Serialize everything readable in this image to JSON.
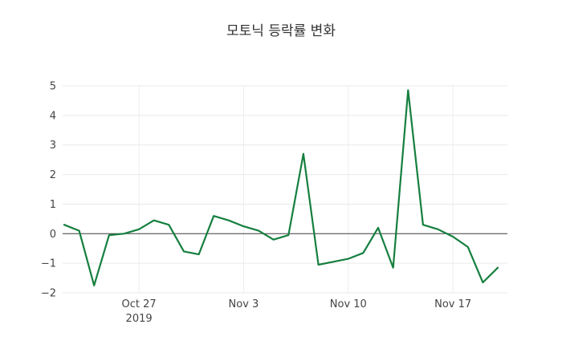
{
  "chart_data": {
    "type": "line",
    "title": "모토닉 등락률 변화",
    "xlabel": "",
    "ylabel": "",
    "ylim": [
      -2,
      5
    ],
    "yticks": [
      -2,
      -1,
      0,
      1,
      2,
      3,
      4,
      5
    ],
    "grid": true,
    "zeroline": true,
    "legend": "none",
    "line_color": "#157f3f",
    "background": "#ffffff",
    "xticks": [
      {
        "index": 5,
        "label": "Oct 27",
        "sublabel": "2019"
      },
      {
        "index": 12,
        "label": "Nov 3",
        "sublabel": ""
      },
      {
        "index": 19,
        "label": "Nov 10",
        "sublabel": ""
      },
      {
        "index": 26,
        "label": "Nov 17",
        "sublabel": ""
      }
    ],
    "dates": [
      "2019-10-22",
      "2019-10-23",
      "2019-10-24",
      "2019-10-25",
      "2019-10-26",
      "2019-10-27",
      "2019-10-28",
      "2019-10-29",
      "2019-10-30",
      "2019-10-31",
      "2019-11-01",
      "2019-11-02",
      "2019-11-03",
      "2019-11-04",
      "2019-11-05",
      "2019-11-06",
      "2019-11-07",
      "2019-11-08",
      "2019-11-09",
      "2019-11-10",
      "2019-11-11",
      "2019-11-12",
      "2019-11-13",
      "2019-11-14",
      "2019-11-15",
      "2019-11-16",
      "2019-11-17",
      "2019-11-18",
      "2019-11-19",
      "2019-11-20"
    ],
    "values": [
      0.3,
      0.1,
      -1.75,
      -0.05,
      0.0,
      0.15,
      0.45,
      0.3,
      -0.6,
      -0.7,
      0.6,
      0.45,
      0.25,
      0.1,
      -0.2,
      -0.05,
      2.7,
      -1.05,
      -0.95,
      -0.85,
      -0.65,
      0.2,
      -1.15,
      4.85,
      0.3,
      0.15,
      -0.1,
      -0.45,
      -1.65,
      -1.15
    ]
  }
}
